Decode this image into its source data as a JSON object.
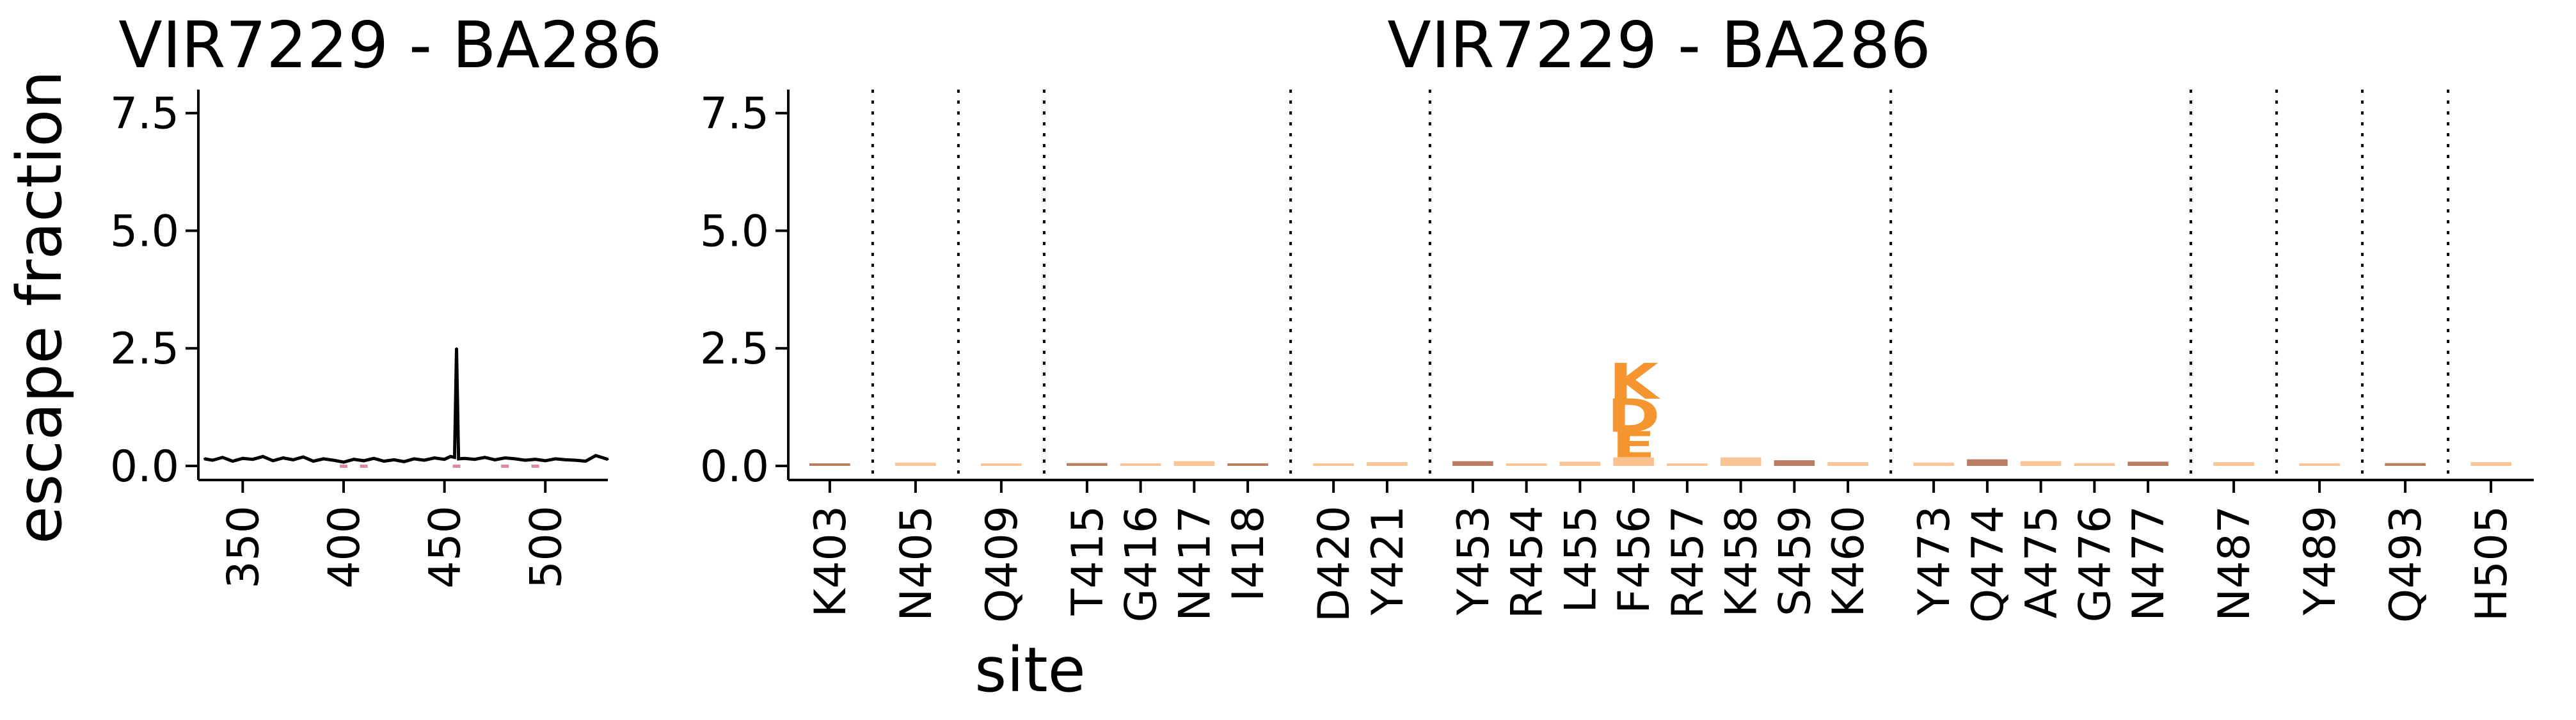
{
  "ylabel": "escape fraction",
  "xlabel": "site",
  "colors": {
    "line": "#000000",
    "logo_main": "#f4952f",
    "logo_light": "#f6b273",
    "logo_brown": "#a0522d",
    "logo_pink": "#d98aa4",
    "divider": "#000000"
  },
  "chart_data": [
    {
      "type": "line",
      "title": "VIR7229 - BA286",
      "ylim": [
        -0.3,
        8.0
      ],
      "xlim": [
        328,
        531
      ],
      "yticks": [
        "0.0",
        "2.5",
        "5.0",
        "7.5"
      ],
      "ytick_values": [
        0.0,
        2.5,
        5.0,
        7.5
      ],
      "xticks": [
        "350",
        "400",
        "450",
        "500"
      ],
      "xtick_values": [
        350,
        400,
        450,
        500
      ],
      "grid": false,
      "series": [
        {
          "x": [
            331,
            335,
            340,
            345,
            350,
            355,
            360,
            365,
            370,
            375,
            380,
            385,
            390,
            395,
            400,
            405,
            410,
            415,
            420,
            425,
            430,
            435,
            440,
            445,
            450,
            453,
            455,
            456,
            457,
            460,
            465,
            470,
            475,
            480,
            485,
            490,
            495,
            500,
            505,
            510,
            515,
            520,
            525,
            531
          ],
          "values": [
            0.15,
            0.12,
            0.18,
            0.1,
            0.16,
            0.14,
            0.2,
            0.11,
            0.17,
            0.13,
            0.19,
            0.1,
            0.15,
            0.12,
            0.08,
            0.14,
            0.11,
            0.16,
            0.1,
            0.13,
            0.09,
            0.15,
            0.12,
            0.17,
            0.14,
            0.2,
            0.18,
            2.5,
            0.15,
            0.16,
            0.14,
            0.18,
            0.13,
            0.17,
            0.15,
            0.12,
            0.14,
            0.11,
            0.15,
            0.13,
            0.12,
            0.1,
            0.22,
            0.14
          ]
        }
      ]
    },
    {
      "type": "logo",
      "title": "VIR7229 - BA286",
      "ylim": [
        -0.3,
        8.0
      ],
      "yticks": [
        "0.0",
        "2.5",
        "5.0",
        "7.5"
      ],
      "ytick_values": [
        0.0,
        2.5,
        5.0,
        7.5
      ],
      "grid": false,
      "sites": [
        "K403",
        "N405",
        "Q409",
        "T415",
        "G416",
        "N417",
        "I418",
        "D420",
        "Y421",
        "Y453",
        "R454",
        "L455",
        "F456",
        "R457",
        "K458",
        "S459",
        "K460",
        "Y473",
        "Q474",
        "A475",
        "G476",
        "N477",
        "N487",
        "Y489",
        "Q493",
        "H505"
      ],
      "group_breaks_after": [
        "K403",
        "N405",
        "Q409",
        "I418",
        "Y421",
        "K460",
        "N477",
        "N487",
        "Y489",
        "Q493"
      ],
      "site_totals": [
        0.05,
        0.07,
        0.02,
        0.06,
        0.03,
        0.1,
        0.04,
        0.03,
        0.08,
        0.1,
        0.02,
        0.09,
        2.3,
        0.03,
        0.18,
        0.12,
        0.08,
        0.07,
        0.14,
        0.1,
        0.06,
        0.09,
        0.08,
        0.04,
        0.06,
        0.08
      ],
      "stacks": [
        {
          "site": "F456",
          "letters": [
            {
              "letter": "K",
              "value": 0.75
            },
            {
              "letter": "D",
              "value": 0.7
            },
            {
              "letter": "E",
              "value": 0.55
            }
          ]
        }
      ]
    }
  ]
}
